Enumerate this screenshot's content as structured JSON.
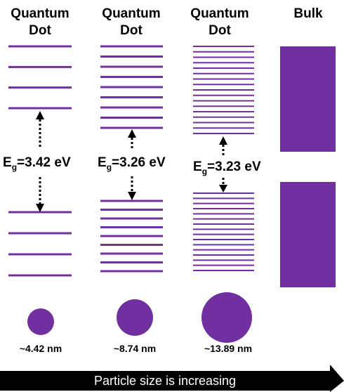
{
  "colors": {
    "level": "#7030a0",
    "arrow_bg": "#000000",
    "arrow_text": "#ffffff"
  },
  "columns": [
    {
      "title_line1": "Quantum",
      "title_line2": "Dot",
      "eg_symbol": "E",
      "eg_sub": "g",
      "eg_value": "=3.42 eV",
      "size_label": "~4.42 nm",
      "levels_upper": 4,
      "levels_lower": 4
    },
    {
      "title_line1": "Quantum",
      "title_line2": "Dot",
      "eg_symbol": "E",
      "eg_sub": "g",
      "eg_value": "=3.26 eV",
      "size_label": "~8.74 nm",
      "levels_upper": 9,
      "levels_lower": 9
    },
    {
      "title_line1": "Quantum",
      "title_line2": "Dot",
      "eg_symbol": "E",
      "eg_sub": "g",
      "eg_value": "=3.23 eV",
      "size_label": "~13.89 nm",
      "levels_upper": 17,
      "levels_lower": 16
    },
    {
      "title_line1": "Bulk"
    }
  ],
  "arrow_label": "Particle size is increasing"
}
